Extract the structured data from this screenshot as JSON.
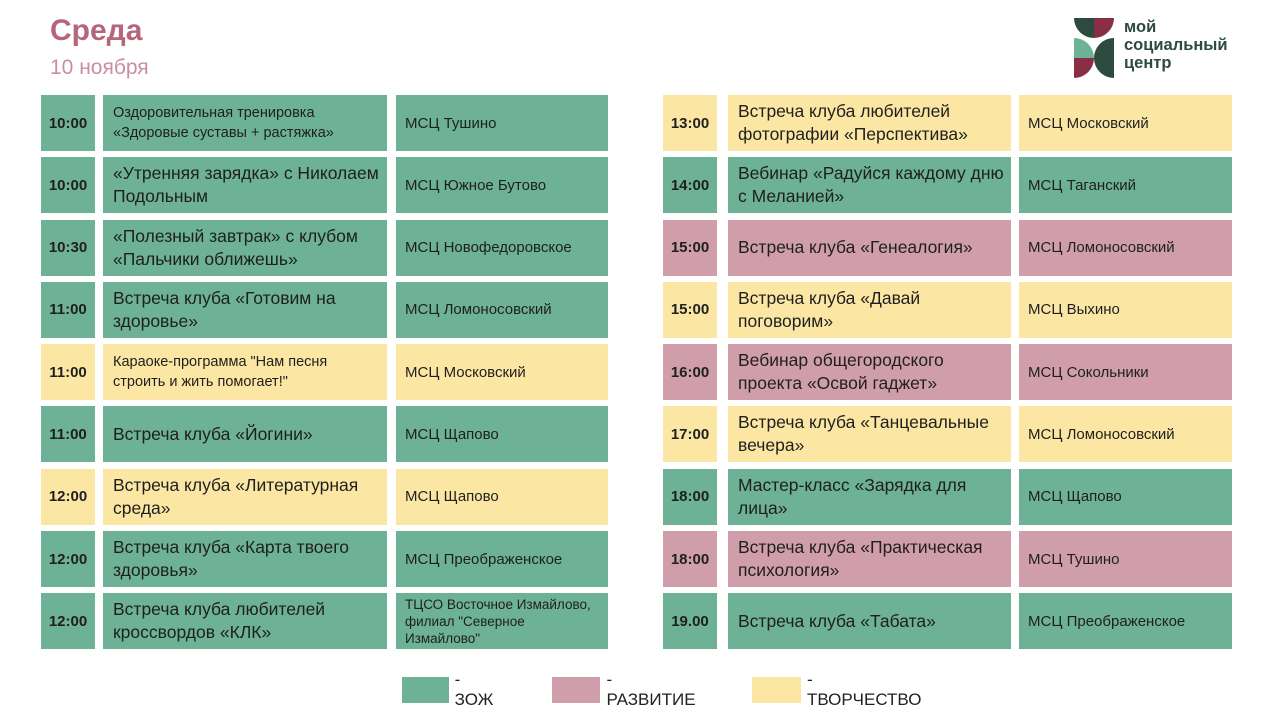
{
  "header": {
    "title": "Среда",
    "date": "10 ноября"
  },
  "logo": {
    "lines": [
      "мой",
      "социальный",
      "центр"
    ],
    "colors": {
      "dark_green": "#2d4a3e",
      "green": "#6db196",
      "maroon": "#8a2e45"
    }
  },
  "colors": {
    "zoj": "#6db196",
    "razv": "#cf9eaa",
    "tvor": "#fbe7a3",
    "title": "#b5667a",
    "date": "#c98fa0"
  },
  "left": [
    {
      "time": "10:00",
      "event": "Оздоровительная тренировка «Здоровые суставы + растяжка»",
      "place": "МСЦ Тушино",
      "cat": "zoj"
    },
    {
      "time": "10:00",
      "event": "«Утренняя зарядка» с Николаем Подольным",
      "place": "МСЦ Южное Бутово",
      "cat": "zoj"
    },
    {
      "time": "10:30",
      "event": "«Полезный завтрак» с клубом «Пальчики оближешь»",
      "place": "МСЦ Новофедоровское",
      "cat": "zoj"
    },
    {
      "time": "11:00",
      "event": "Встреча клуба «Готовим на здоровье»",
      "place": "МСЦ Ломоносовский",
      "cat": "zoj"
    },
    {
      "time": "11:00",
      "event": "Караоке-программа \"Нам песня строить и жить помогает!\"",
      "place": "МСЦ Московский",
      "cat": "tvor"
    },
    {
      "time": "11:00",
      "event": "Встреча клуба «Йогини»",
      "place": "МСЦ Щапово",
      "cat": "zoj"
    },
    {
      "time": "12:00",
      "event": "Встреча клуба «Литературная среда»",
      "place": "МСЦ Щапово",
      "cat": "tvor"
    },
    {
      "time": "12:00",
      "event": "Встреча клуба «Карта твоего здоровья»",
      "place": "МСЦ Преображенское",
      "cat": "zoj"
    },
    {
      "time": "12:00",
      "event": "Встреча клуба любителей кроссвордов «КЛК»",
      "place": "ТЦСО Восточное Измайлово, филиал \"Северное Измайлово\"",
      "cat": "zoj"
    }
  ],
  "right": [
    {
      "time": "13:00",
      "event": "Встреча клуба любителей фотографии «Перспектива»",
      "place": "МСЦ Московский",
      "cat": "tvor"
    },
    {
      "time": "14:00",
      "event": "Вебинар «Радуйся каждому дню с Меланией»",
      "place": "МСЦ Таганский",
      "cat": "zoj"
    },
    {
      "time": "15:00",
      "event": "Встреча клуба «Генеалогия»",
      "place": "МСЦ Ломоносовский",
      "cat": "razv"
    },
    {
      "time": "15:00",
      "event": "Встреча клуба «Давай поговорим»",
      "place": "МСЦ Выхино",
      "cat": "tvor"
    },
    {
      "time": "16:00",
      "event": "Вебинар общегородского проекта «Освой гаджет»",
      "place": "МСЦ Сокольники",
      "cat": "razv"
    },
    {
      "time": "17:00",
      "event": "Встреча клуба «Танцевальные вечера»",
      "place": "МСЦ Ломоносовский",
      "cat": "tvor"
    },
    {
      "time": "18:00",
      "event": "Мастер-класс «Зарядка для лица»",
      "place": "МСЦ Щапово",
      "cat": "zoj"
    },
    {
      "time": "18:00",
      "event": "Встреча клуба «Практическая психология»",
      "place": "МСЦ Тушино",
      "cat": "razv"
    },
    {
      "time": "19.00",
      "event": "Встреча клуба «Табата»",
      "place": "МСЦ Преображенское",
      "cat": "zoj"
    }
  ],
  "legend": [
    {
      "cat": "zoj",
      "label": "- ЗОЖ"
    },
    {
      "cat": "razv",
      "label": "- РАЗВИТИЕ"
    },
    {
      "cat": "tvor",
      "label": "- ТВОРЧЕСТВО"
    }
  ]
}
